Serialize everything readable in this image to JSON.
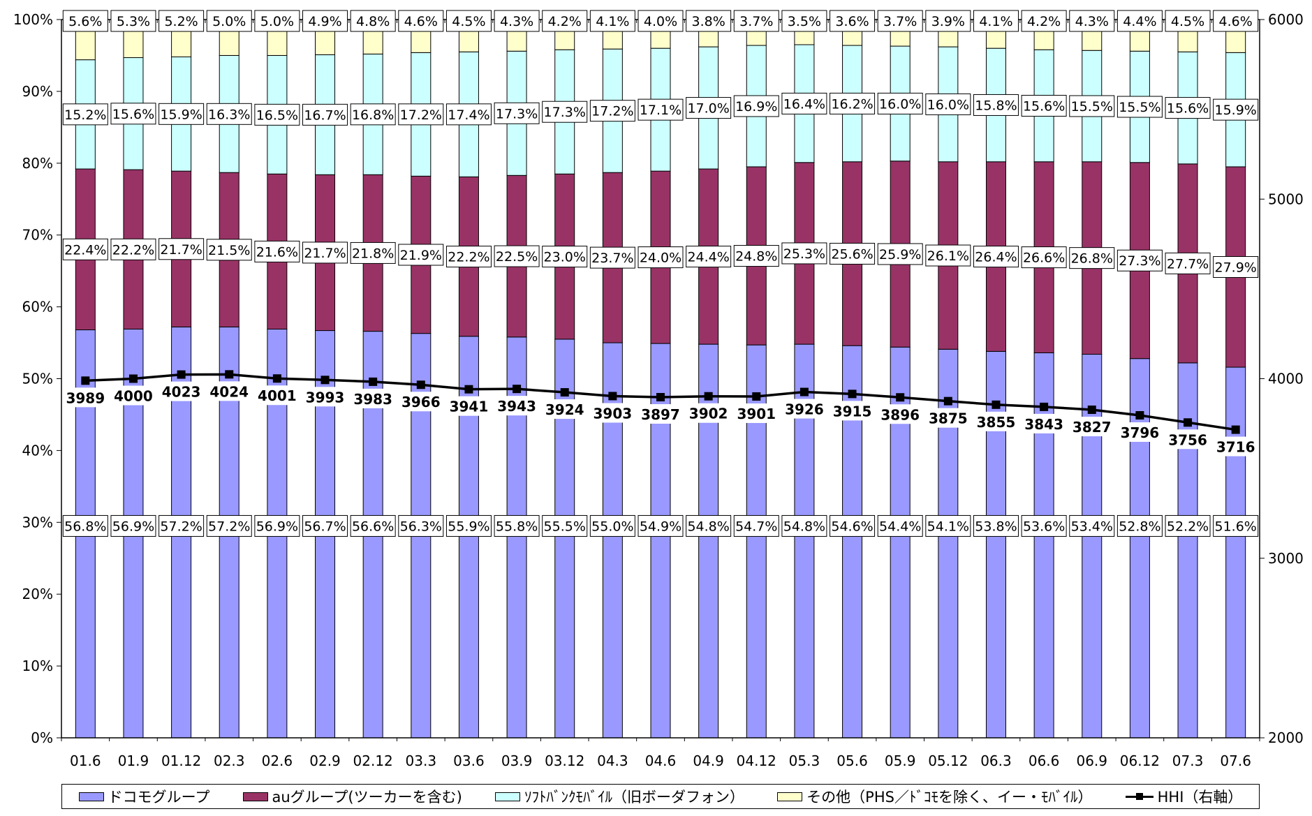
{
  "chart_data": {
    "type": "bar",
    "stacked": true,
    "categories": [
      "01.6",
      "01.9",
      "01.12",
      "02.3",
      "02.6",
      "02.9",
      "02.12",
      "03.3",
      "03.6",
      "03.9",
      "03.12",
      "04.3",
      "04.6",
      "04.9",
      "04.12",
      "05.3",
      "05.6",
      "05.9",
      "05.12",
      "06.3",
      "06.6",
      "06.9",
      "06.12",
      "07.3",
      "07.6"
    ],
    "series": [
      {
        "name": "ドコモグループ",
        "color": "#9999ff",
        "values": [
          56.8,
          56.9,
          57.2,
          57.2,
          56.9,
          56.7,
          56.6,
          56.3,
          55.9,
          55.8,
          55.5,
          55.0,
          54.9,
          54.8,
          54.7,
          54.8,
          54.6,
          54.4,
          54.1,
          53.8,
          53.6,
          53.4,
          52.8,
          52.2,
          51.6
        ]
      },
      {
        "name": "auグループ(ツーカーを含む)",
        "color": "#993366",
        "values": [
          22.4,
          22.2,
          21.7,
          21.5,
          21.6,
          21.7,
          21.8,
          21.9,
          22.2,
          22.5,
          23.0,
          23.7,
          24.0,
          24.4,
          24.8,
          25.3,
          25.6,
          25.9,
          26.1,
          26.4,
          26.6,
          26.8,
          27.3,
          27.7,
          27.9
        ]
      },
      {
        "name": "ｿﾌﾄﾊﾞﾝｸﾓﾊﾞｲﾙ（旧ボーダフォン）",
        "color": "#ccffff",
        "values": [
          15.2,
          15.6,
          15.9,
          16.3,
          16.5,
          16.7,
          16.8,
          17.2,
          17.4,
          17.3,
          17.3,
          17.2,
          17.1,
          17.0,
          16.9,
          16.4,
          16.2,
          16.0,
          16.0,
          15.8,
          15.6,
          15.5,
          15.5,
          15.6,
          15.9
        ]
      },
      {
        "name": "その他（PHS／ﾄﾞｺﾓを除く、イー・ﾓﾊﾞｲﾙ）",
        "color": "#ffffcc",
        "values": [
          5.6,
          5.3,
          5.2,
          5.0,
          5.0,
          4.9,
          4.8,
          4.6,
          4.5,
          4.3,
          4.2,
          4.1,
          4.0,
          3.8,
          3.7,
          3.5,
          3.6,
          3.7,
          3.9,
          4.1,
          4.2,
          4.3,
          4.4,
          4.5,
          4.6
        ]
      }
    ],
    "line_series": {
      "name": "HHI（右軸）",
      "color": "#000000",
      "values": [
        3989,
        4000,
        4023,
        4024,
        4001,
        3993,
        3983,
        3966,
        3941,
        3943,
        3924,
        3903,
        3897,
        3902,
        3901,
        3926,
        3915,
        3896,
        3875,
        3855,
        3843,
        3827,
        3796,
        3756,
        3716
      ]
    },
    "y_left": {
      "ylim": [
        0,
        100
      ],
      "ticks": [
        "0%",
        "10%",
        "20%",
        "30%",
        "40%",
        "50%",
        "60%",
        "70%",
        "80%",
        "90%",
        "100%"
      ]
    },
    "y_right": {
      "ylim": [
        2000,
        6000
      ],
      "ticks": [
        "2000",
        "3000",
        "4000",
        "5000",
        "6000"
      ]
    },
    "grid": false,
    "legend_position": "bottom"
  },
  "legend": {
    "items": [
      {
        "label": "ドコモグループ",
        "color": "#9999ff",
        "kind": "box"
      },
      {
        "label": "auグループ(ツーカーを含む)",
        "color": "#993366",
        "kind": "box"
      },
      {
        "label": "ｿﾌﾄﾊﾞﾝｸﾓﾊﾞｲﾙ（旧ボーダフォン）",
        "color": "#ccffff",
        "kind": "box"
      },
      {
        "label": "その他（PHS／ﾄﾞｺﾓを除く、イー・ﾓﾊﾞｲﾙ）",
        "color": "#ffffcc",
        "kind": "box"
      },
      {
        "label": "HHI（右軸）",
        "color": "#000000",
        "kind": "line"
      }
    ]
  }
}
